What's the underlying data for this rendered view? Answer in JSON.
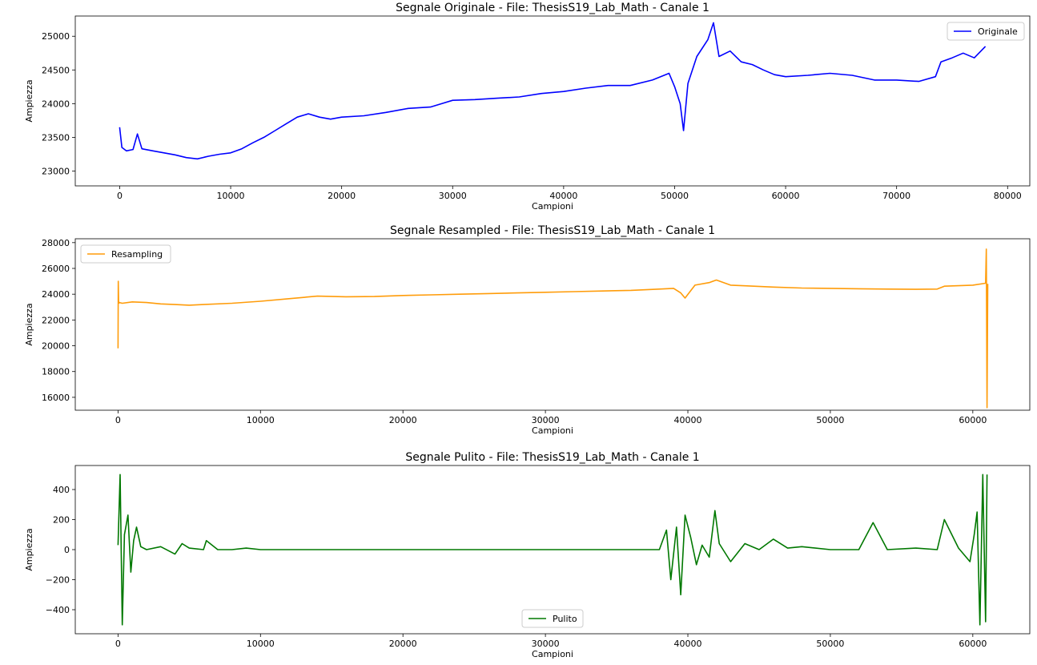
{
  "chart_data": [
    {
      "type": "line",
      "title": "Segnale Originale - File: ThesisS19_Lab_Math - Canale 1",
      "xlabel": "Campioni",
      "ylabel": "Ampiezza",
      "xlim": [
        -4000,
        82000
      ],
      "ylim": [
        22780,
        25300
      ],
      "xticks": [
        0,
        10000,
        20000,
        30000,
        40000,
        50000,
        60000,
        70000,
        80000
      ],
      "yticks": [
        23000,
        23500,
        24000,
        24500,
        25000
      ],
      "legend_loc": "upper right",
      "series": [
        {
          "name": "Originale",
          "color": "#0000ff",
          "x": [
            0,
            200,
            600,
            1200,
            1600,
            2000,
            3000,
            4000,
            5000,
            6000,
            7000,
            8000,
            9000,
            10000,
            11000,
            12000,
            13000,
            14000,
            15000,
            16000,
            17000,
            18000,
            19000,
            20000,
            22000,
            24000,
            26000,
            28000,
            30000,
            32000,
            34000,
            36000,
            38000,
            40000,
            42000,
            44000,
            46000,
            48000,
            49500,
            50000,
            50500,
            50800,
            51200,
            52000,
            53000,
            53500,
            54000,
            55000,
            56000,
            57000,
            58000,
            59000,
            60000,
            62000,
            64000,
            66000,
            68000,
            70000,
            72000,
            73500,
            74000,
            75000,
            76000,
            77000,
            78000
          ],
          "y": [
            23650,
            23350,
            23300,
            23320,
            23550,
            23330,
            23300,
            23270,
            23240,
            23200,
            23180,
            23220,
            23250,
            23270,
            23330,
            23420,
            23500,
            23600,
            23700,
            23800,
            23850,
            23800,
            23770,
            23800,
            23820,
            23870,
            23930,
            23950,
            24050,
            24060,
            24080,
            24100,
            24150,
            24180,
            24230,
            24270,
            24270,
            24350,
            24450,
            24250,
            24000,
            23600,
            24300,
            24700,
            24950,
            25200,
            24700,
            24780,
            24620,
            24580,
            24500,
            24430,
            24400,
            24420,
            24450,
            24420,
            24350,
            24350,
            24330,
            24400,
            24620,
            24680,
            24750,
            24680,
            24850
          ]
        }
      ]
    },
    {
      "type": "line",
      "title": "Segnale Resampled - File: ThesisS19_Lab_Math - Canale 1",
      "xlabel": "Campioni",
      "ylabel": "Ampiezza",
      "xlim": [
        -3000,
        64000
      ],
      "ylim": [
        15000,
        28300
      ],
      "xticks": [
        0,
        10000,
        20000,
        30000,
        40000,
        50000,
        60000
      ],
      "yticks": [
        16000,
        18000,
        20000,
        22000,
        24000,
        26000,
        28000
      ],
      "legend_loc": "upper left",
      "series": [
        {
          "name": "Resampling",
          "color": "#ff9c0a",
          "x": [
            0,
            20,
            40,
            60,
            100,
            300,
            1000,
            2000,
            3000,
            4000,
            5000,
            6000,
            8000,
            10000,
            12000,
            14000,
            16000,
            18000,
            20000,
            22000,
            24000,
            26000,
            28000,
            30000,
            32000,
            34000,
            36000,
            38000,
            39000,
            39500,
            39800,
            40500,
            41500,
            42000,
            43000,
            44000,
            46000,
            48000,
            50000,
            52000,
            54000,
            56000,
            57500,
            58000,
            60000,
            60900,
            60950,
            61000,
            61050
          ],
          "y": [
            19800,
            25000,
            23500,
            23300,
            23350,
            23300,
            23400,
            23350,
            23250,
            23200,
            23150,
            23200,
            23300,
            23450,
            23650,
            23850,
            23800,
            23820,
            23900,
            23950,
            24000,
            24050,
            24100,
            24150,
            24200,
            24250,
            24300,
            24400,
            24450,
            24100,
            23700,
            24700,
            24900,
            25100,
            24700,
            24650,
            24550,
            24480,
            24450,
            24420,
            24400,
            24380,
            24400,
            24620,
            24700,
            24850,
            27500,
            15200,
            24800
          ]
        }
      ]
    },
    {
      "type": "line",
      "title": "Segnale Pulito - File: ThesisS19_Lab_Math - Canale 1",
      "xlabel": "Campioni",
      "ylabel": "Ampiezza",
      "xlim": [
        -3000,
        64000
      ],
      "ylim": [
        -560,
        560
      ],
      "xticks": [
        0,
        10000,
        20000,
        30000,
        40000,
        50000,
        60000
      ],
      "yticks": [
        -400,
        -200,
        0,
        200,
        400
      ],
      "legend_loc": "lower center",
      "series": [
        {
          "name": "Pulito",
          "color": "#007800",
          "x": [
            0,
            150,
            300,
            450,
            700,
            900,
            1100,
            1300,
            1600,
            2000,
            3000,
            4000,
            4500,
            5000,
            6000,
            6200,
            7000,
            8000,
            9000,
            10000,
            12000,
            14000,
            16000,
            18000,
            20000,
            22000,
            24000,
            26000,
            28000,
            30000,
            32000,
            34000,
            36000,
            38000,
            38500,
            38800,
            39200,
            39500,
            39800,
            40200,
            40600,
            41000,
            41500,
            41900,
            42200,
            43000,
            44000,
            45000,
            46000,
            47000,
            48000,
            50000,
            52000,
            53000,
            54000,
            56000,
            57500,
            58000,
            59000,
            59800,
            60100,
            60300,
            60500,
            60700,
            60900,
            61000
          ],
          "y": [
            30,
            500,
            -500,
            100,
            230,
            -150,
            60,
            150,
            20,
            0,
            20,
            -30,
            40,
            10,
            0,
            60,
            0,
            0,
            10,
            0,
            0,
            0,
            0,
            0,
            0,
            0,
            0,
            0,
            0,
            0,
            0,
            0,
            0,
            0,
            130,
            -200,
            150,
            -300,
            230,
            80,
            -100,
            30,
            -50,
            260,
            40,
            -80,
            40,
            0,
            70,
            10,
            20,
            0,
            0,
            180,
            0,
            10,
            0,
            200,
            10,
            -80,
            100,
            250,
            -500,
            500,
            -480,
            500
          ]
        }
      ]
    }
  ]
}
